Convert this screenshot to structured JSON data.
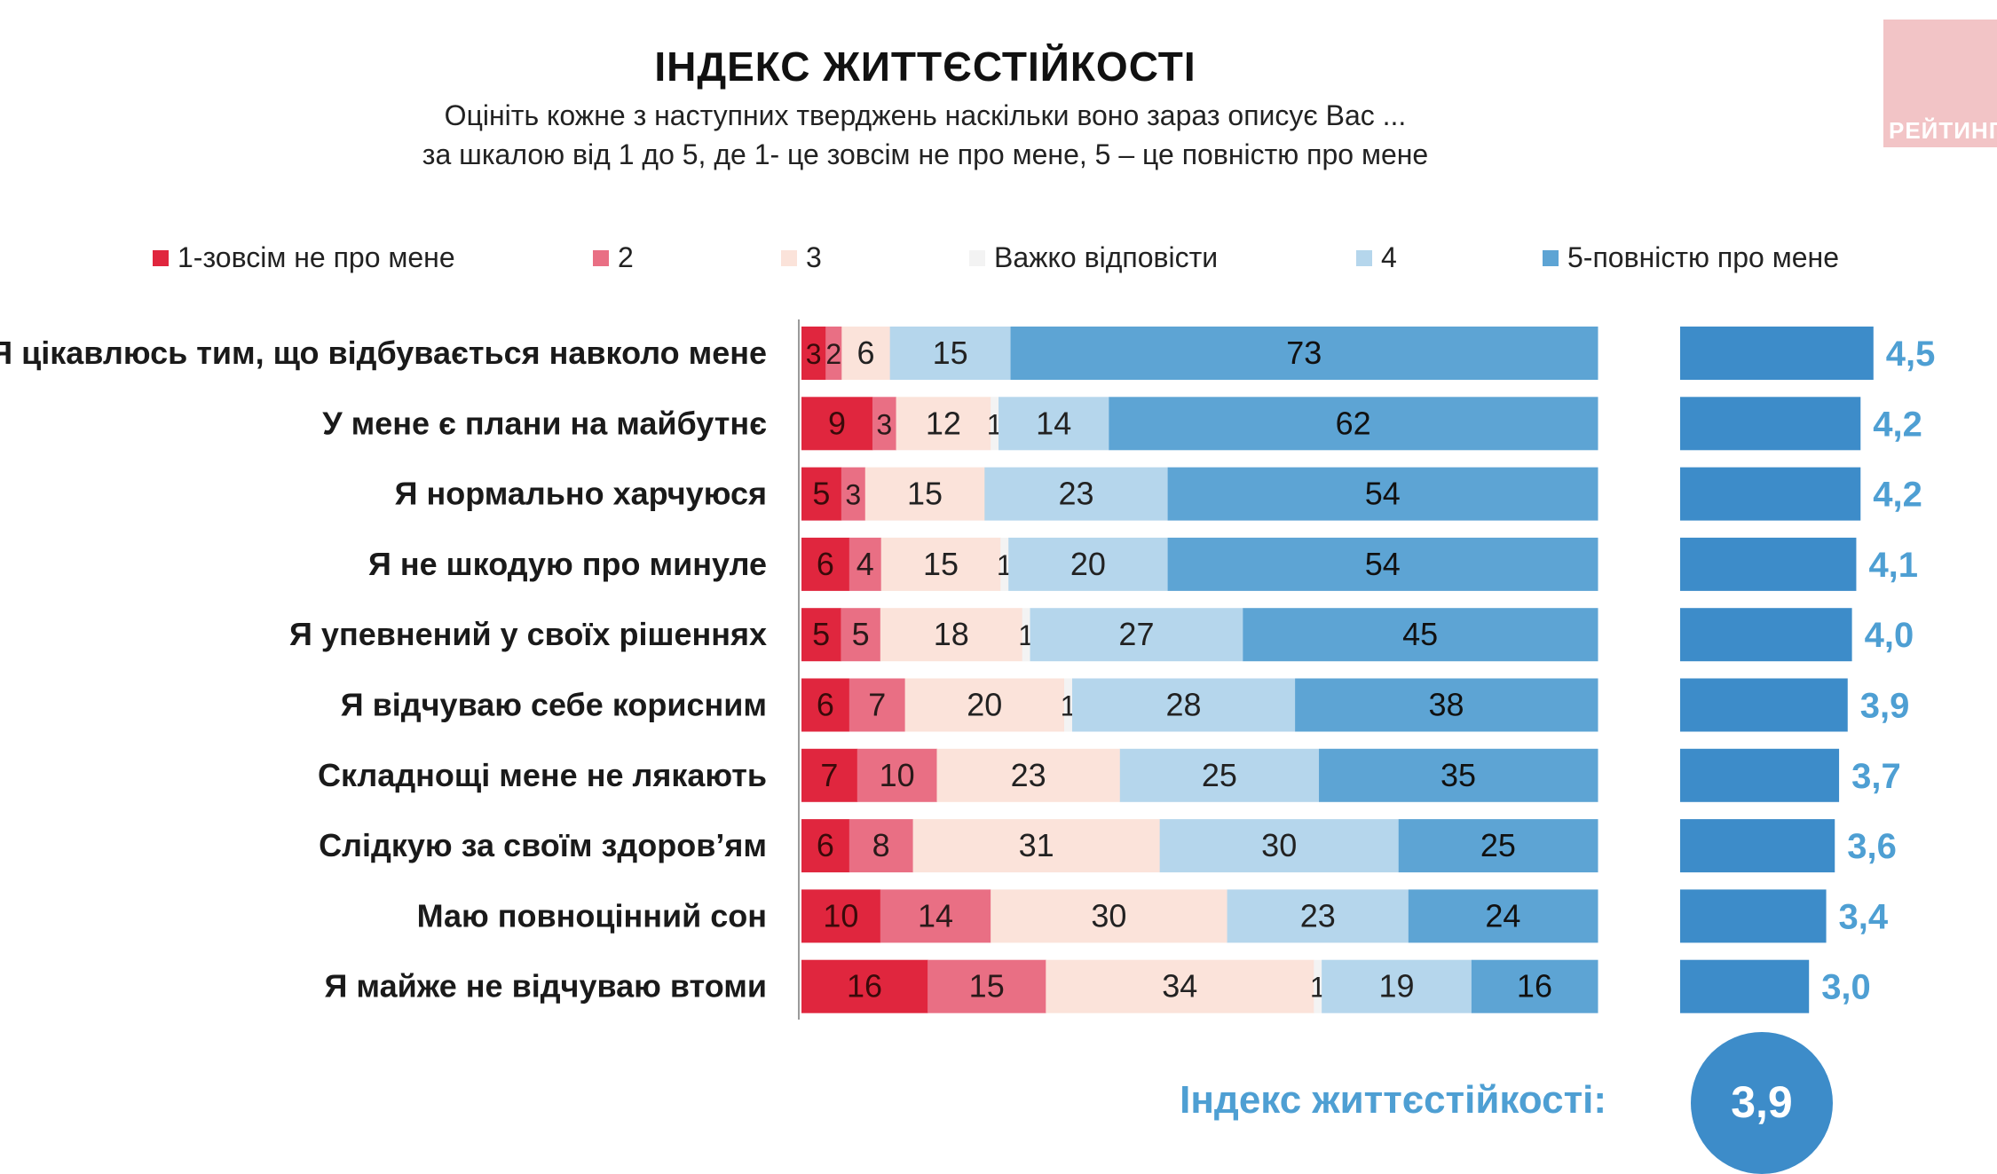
{
  "title": "ІНДЕКС ЖИТТЄСТІЙКОСТІ",
  "subtitle_line1": "Оцініть кожне з наступних тверджень наскільки воно зараз описує Вас ...",
  "subtitle_line2": "за шкалою від 1 до 5, де 1- це зовсім не про мене, 5 – це повністю про мене",
  "logo_text": "РЕЙТИНГ",
  "index_label": "Індекс життєстійкості:",
  "index_value": "3,9",
  "chart_data": {
    "type": "bar",
    "orientation": "horizontal",
    "stacked": true,
    "categories": [
      "Я цікавлюсь тим, що відбувається навколо мене",
      "У мене є плани на майбутнє",
      "Я нормально харчуюся",
      "Я не шкодую про минуле",
      "Я упевнений у своїх рішеннях",
      "Я відчуваю себе корисним",
      "Складнощі мене не лякають",
      "Слідкую за своїм здоров’ям",
      "Маю повноцінний сон",
      "Я майже не відчуваю втоми"
    ],
    "series": [
      {
        "name": "1-зовсім не про мене",
        "color": "#e0263e",
        "text_color": "#3a0a0a",
        "values": [
          3,
          9,
          5,
          6,
          5,
          6,
          7,
          6,
          10,
          16
        ]
      },
      {
        "name": "2",
        "color": "#e96f84",
        "text_color": "#2a1a1a",
        "values": [
          2,
          3,
          3,
          4,
          5,
          7,
          10,
          8,
          14,
          15
        ]
      },
      {
        "name": "3",
        "color": "#fbe3da",
        "text_color": "#222222",
        "values": [
          6,
          12,
          15,
          15,
          18,
          20,
          23,
          31,
          30,
          34
        ]
      },
      {
        "name": "Важко відповісти",
        "color": "#f3f3f3",
        "text_color": "#222222",
        "values": [
          0,
          1,
          0,
          1,
          1,
          1,
          0,
          0,
          0,
          1
        ]
      },
      {
        "name": "4",
        "color": "#b5d6ec",
        "text_color": "#222222",
        "values": [
          15,
          14,
          23,
          20,
          27,
          28,
          25,
          30,
          23,
          19
        ]
      },
      {
        "name": "5-повністю про мене",
        "color": "#5da4d4",
        "text_color": "#111111",
        "values": [
          73,
          62,
          54,
          54,
          45,
          38,
          35,
          25,
          24,
          16
        ]
      }
    ],
    "averages": [
      4.5,
      4.2,
      4.2,
      4.1,
      4.0,
      3.9,
      3.7,
      3.6,
      3.4,
      3.0
    ],
    "average_labels": [
      "4,5",
      "4,2",
      "4,2",
      "4,1",
      "4,0",
      "3,9",
      "3,7",
      "3,6",
      "3,4",
      "3,0"
    ],
    "average_color": "#3d8cc9",
    "average_label_color": "#4e9fd3",
    "average_scale": [
      0,
      5
    ],
    "legend_position": "top",
    "grid": false
  }
}
